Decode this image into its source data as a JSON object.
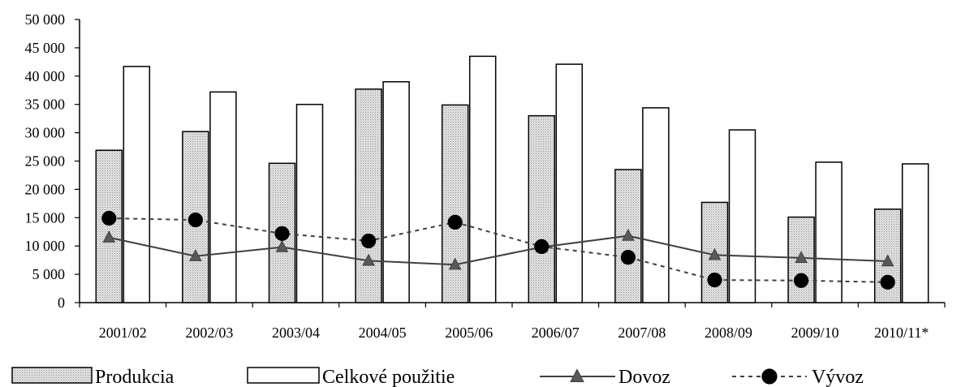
{
  "chart_data": {
    "type": "bar",
    "categories": [
      "2001/02",
      "2002/03",
      "2003/04",
      "2004/05",
      "2005/06",
      "2006/07",
      "2007/08",
      "2008/09",
      "2009/10",
      "2010/11*"
    ],
    "ylim": [
      0,
      50000
    ],
    "yticks": [
      0,
      5000,
      10000,
      15000,
      20000,
      25000,
      30000,
      35000,
      40000,
      45000,
      50000
    ],
    "ytick_labels": [
      "0",
      "5 000",
      "10 000",
      "15 000",
      "20 000",
      "25 000",
      "30 000",
      "35 000",
      "40 000",
      "45 000",
      "50 000"
    ],
    "title": "",
    "xlabel": "",
    "ylabel": "",
    "grid": false,
    "legend_position": "bottom",
    "series": [
      {
        "name": "Produkcia",
        "kind": "bar",
        "fill": "dotted-gray",
        "values": [
          26900,
          30200,
          24600,
          37700,
          34900,
          33000,
          23500,
          17700,
          15100,
          16500
        ]
      },
      {
        "name": "Celkové použitie",
        "kind": "bar",
        "fill": "white",
        "values": [
          41700,
          37200,
          35000,
          39000,
          43500,
          42100,
          34400,
          30500,
          24800,
          24500
        ]
      },
      {
        "name": "Dovoz",
        "kind": "line",
        "marker": "triangle",
        "line_style": "solid",
        "values": [
          11500,
          8200,
          9800,
          7400,
          6700,
          9800,
          11800,
          8400,
          7900,
          7300
        ]
      },
      {
        "name": "Vývoz",
        "kind": "line",
        "marker": "circle",
        "line_style": "dashed",
        "values": [
          14900,
          14600,
          12200,
          10900,
          14200,
          9900,
          8000,
          4000,
          3900,
          3600
        ]
      }
    ]
  },
  "colors": {
    "axis": "#000000",
    "bar_stroke": "#000000",
    "dovoz_line": "#404040",
    "vyvoz_line": "#404040",
    "marker": "#000000"
  }
}
